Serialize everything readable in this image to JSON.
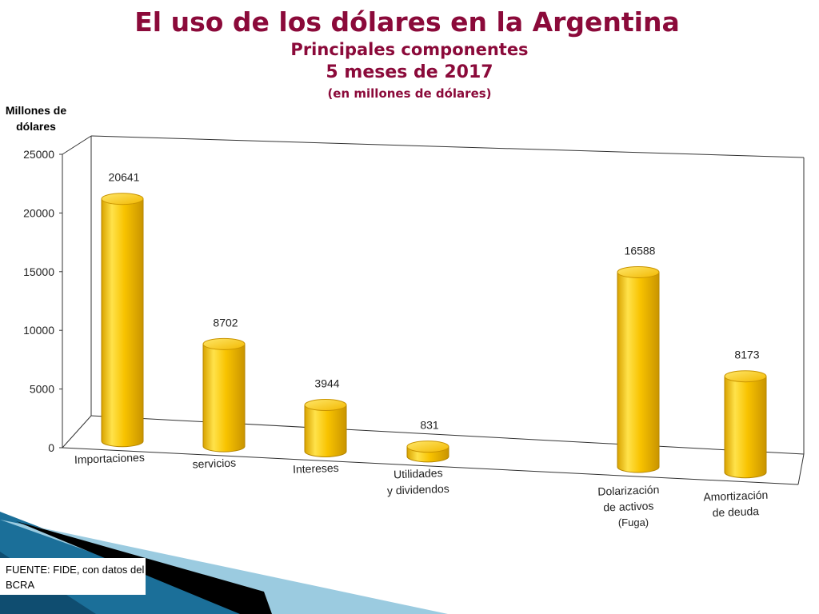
{
  "title": "El uso de los dólares en la Argentina",
  "subtitle": "Principales componentes",
  "period": "5 meses de 2017",
  "unit_note": "(en millones de dólares)",
  "source": "FUENTE: FIDE, con datos del BCRA",
  "colors": {
    "title": "#8b0a3a",
    "bar_light": "#ffe24a",
    "bar_mid": "#f8c300",
    "bar_dark": "#c99400",
    "decor_blue": "#1b6f99",
    "decor_light": "#9bcbe0"
  },
  "chart_data": {
    "type": "bar",
    "title": "El uso de los dólares en la Argentina",
    "subtitle": "Principales componentes — 5 meses de 2017 (en millones de dólares)",
    "ylabel": "Millones de dólares",
    "xlabel": "",
    "ylim": [
      0,
      25000
    ],
    "yticks": [
      0,
      5000,
      10000,
      15000,
      20000,
      25000
    ],
    "grid": false,
    "categories": [
      [
        "Importaciones"
      ],
      [
        "servicios"
      ],
      [
        "Intereses"
      ],
      [
        "Utilidades",
        "y dividendos"
      ],
      [
        "Dolarización",
        "de activos"
      ],
      [
        "Amortización",
        "de deuda"
      ]
    ],
    "values": [
      20641,
      8702,
      3944,
      831,
      16588,
      8173
    ],
    "annotations": [
      {
        "category_index": 4,
        "text": "(Fuga)"
      }
    ]
  }
}
